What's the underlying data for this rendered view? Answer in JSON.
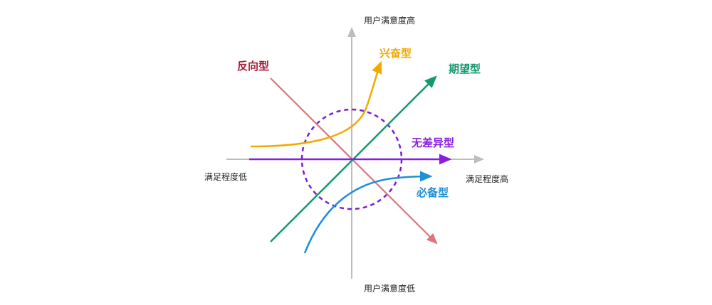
{
  "axes": {
    "y_high": "用户满意度高",
    "y_low": "用户满意度低",
    "x_low": "满足程度低",
    "x_high": "满足程度高"
  },
  "types": {
    "reverse": {
      "label": "反向型",
      "color": "#a51c36",
      "line_color": "#d9777f"
    },
    "exciting": {
      "label": "兴奋型",
      "color": "#f0a800",
      "line_color": "#f2a900"
    },
    "expected": {
      "label": "期望型",
      "color": "#139a6a",
      "line_color": "#139a6a"
    },
    "indifferent": {
      "label": "无差异型",
      "color": "#8a1ee0",
      "line_color": "#8a1ee0"
    },
    "must_be": {
      "label": "必备型",
      "color": "#1e8fd8",
      "line_color": "#1e8fd8"
    }
  },
  "axis_color": "#bdbdbd"
}
